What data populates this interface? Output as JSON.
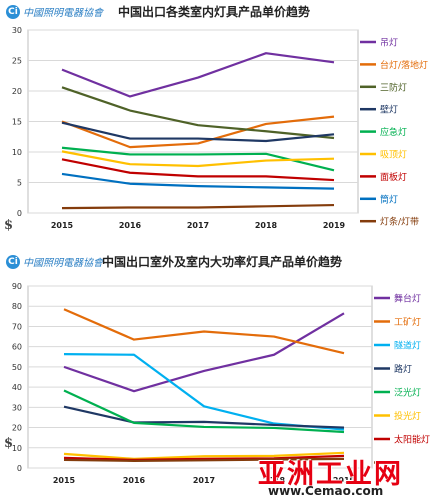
{
  "logo": {
    "mark": "Ci",
    "text": "中國照明電器協會"
  },
  "dollar_symbol": "$",
  "watermark": {
    "text": "亚洲工业网",
    "url": "www.Cemao.com"
  },
  "chart_data": [
    {
      "type": "line",
      "title": "中国出口各类室内灯具产品单价趋势",
      "x": [
        "2015",
        "2016",
        "2017",
        "2018",
        "2019"
      ],
      "ylim": [
        0,
        30
      ],
      "yticks": [
        0,
        5,
        10,
        15,
        20,
        25,
        30
      ],
      "grid": true,
      "legend_position": "right",
      "series": [
        {
          "name": "吊灯",
          "color": "#7030a0",
          "values": [
            23.5,
            19.1,
            22.2,
            26.2,
            24.7
          ]
        },
        {
          "name": "台灯/落地灯",
          "color": "#e36c0a",
          "values": [
            15.0,
            10.8,
            11.4,
            14.6,
            15.8
          ]
        },
        {
          "name": "三防灯",
          "color": "#4f6228",
          "values": [
            20.6,
            16.8,
            14.4,
            13.4,
            12.3
          ]
        },
        {
          "name": "壁灯",
          "color": "#1f3864",
          "values": [
            14.8,
            12.2,
            12.2,
            11.8,
            12.9
          ]
        },
        {
          "name": "应急灯",
          "color": "#00b050",
          "values": [
            10.7,
            9.6,
            9.6,
            9.7,
            7.0
          ]
        },
        {
          "name": "吸顶灯",
          "color": "#ffc000",
          "values": [
            10.1,
            8.0,
            7.7,
            8.6,
            8.9
          ]
        },
        {
          "name": "面板灯",
          "color": "#c00000",
          "values": [
            8.8,
            6.6,
            6.0,
            6.0,
            5.4
          ]
        },
        {
          "name": "筒灯",
          "color": "#0070c0",
          "values": [
            6.4,
            4.8,
            4.4,
            4.2,
            4.0
          ]
        },
        {
          "name": "灯条/灯带",
          "color": "#843c0c",
          "values": [
            0.8,
            0.9,
            0.9,
            1.1,
            1.3
          ]
        }
      ]
    },
    {
      "type": "line",
      "title": "中国出口室外及室内大功率灯具产品单价趋势",
      "x": [
        "2015",
        "2016",
        "2017",
        "2018",
        "2019"
      ],
      "ylim": [
        0,
        90
      ],
      "yticks": [
        0,
        10,
        20,
        30,
        40,
        50,
        60,
        70,
        80,
        90
      ],
      "grid": true,
      "legend_position": "right",
      "series": [
        {
          "name": "舞台灯",
          "color": "#7030a0",
          "values": [
            50.0,
            38.0,
            48.0,
            56.0,
            76.5
          ]
        },
        {
          "name": "工矿灯",
          "color": "#e36c0a",
          "values": [
            78.5,
            63.5,
            67.5,
            65.0,
            56.8
          ]
        },
        {
          "name": "隧道灯",
          "color": "#00b0f0",
          "values": [
            56.3,
            56.0,
            30.5,
            22.0,
            19.0
          ]
        },
        {
          "name": "路灯",
          "color": "#1f3864",
          "values": [
            30.3,
            22.5,
            22.8,
            21.3,
            20.0
          ]
        },
        {
          "name": "泛光灯",
          "color": "#00b050",
          "values": [
            38.3,
            22.3,
            20.3,
            19.8,
            17.8
          ]
        },
        {
          "name": "投光灯",
          "color": "#ffc000",
          "values": [
            7.0,
            4.5,
            5.8,
            6.0,
            7.5
          ]
        },
        {
          "name": "太阳能灯",
          "color": "#c00000",
          "values": [
            5.0,
            4.0,
            4.5,
            4.8,
            6.0
          ]
        },
        {
          "name": "",
          "color": "#843c0c",
          "values": [
            4.0,
            3.5,
            3.8,
            4.2,
            4.5
          ]
        }
      ]
    }
  ]
}
